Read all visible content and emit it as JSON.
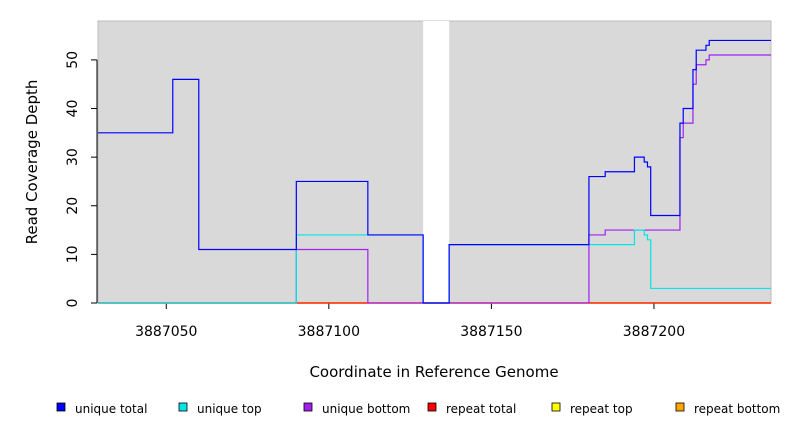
{
  "chart_data": {
    "type": "line",
    "title": "",
    "xlabel": "Coordinate in Reference Genome",
    "ylabel": "Read Coverage Depth",
    "xlim": [
      3887029,
      3887236
    ],
    "ylim": [
      0,
      58
    ],
    "x_ticks": [
      3887050,
      3887100,
      3887150,
      3887200
    ],
    "x_tick_labels": [
      "3887050",
      "3887100",
      "3887150",
      "3887200"
    ],
    "y_ticks": [
      0,
      10,
      20,
      30,
      40,
      50
    ],
    "y_tick_labels": [
      "0",
      "10",
      "20",
      "30",
      "40",
      "50"
    ],
    "gap": [
      3887129,
      3887137
    ],
    "legend_position": "bottom",
    "colors": {
      "panel_bg": "#d9d9d9",
      "gap_bg": "#ffffff",
      "unique_total": "#0000ff",
      "unique_top": "#00e5e5",
      "unique_bottom": "#a020f0",
      "repeat_total": "#ff0000",
      "repeat_top": "#ffff00",
      "repeat_bottom": "#ffa500"
    },
    "series": [
      {
        "name": "unique total",
        "color": "#0000ff",
        "steps": [
          [
            3887029,
            35
          ],
          [
            3887052,
            46
          ],
          [
            3887060,
            11
          ],
          [
            3887090,
            25
          ],
          [
            3887112,
            14
          ],
          [
            3887129,
            0
          ],
          [
            3887137,
            12
          ],
          [
            3887180,
            26
          ],
          [
            3887185,
            27
          ],
          [
            3887194,
            30
          ],
          [
            3887197,
            29
          ],
          [
            3887198,
            28
          ],
          [
            3887199,
            18
          ],
          [
            3887208,
            37
          ],
          [
            3887209,
            40
          ],
          [
            3887212,
            48
          ],
          [
            3887213,
            52
          ],
          [
            3887216,
            53
          ],
          [
            3887217,
            54
          ],
          [
            3887236,
            54
          ]
        ]
      },
      {
        "name": "unique top",
        "color": "#00e5e5",
        "steps": [
          [
            3887029,
            0
          ],
          [
            3887090,
            14
          ],
          [
            3887129,
            0
          ],
          [
            3887137,
            12
          ],
          [
            3887194,
            15
          ],
          [
            3887197,
            14
          ],
          [
            3887198,
            13
          ],
          [
            3887199,
            3
          ],
          [
            3887236,
            3
          ]
        ]
      },
      {
        "name": "unique bottom",
        "color": "#a020f0",
        "steps": [
          [
            3887029,
            0
          ],
          [
            3887090,
            11
          ],
          [
            3887112,
            0
          ],
          [
            3887180,
            14
          ],
          [
            3887185,
            15
          ],
          [
            3887208,
            34
          ],
          [
            3887209,
            37
          ],
          [
            3887212,
            45
          ],
          [
            3887213,
            49
          ],
          [
            3887216,
            50
          ],
          [
            3887217,
            51
          ],
          [
            3887236,
            51
          ]
        ]
      },
      {
        "name": "repeat total",
        "color": "#ff0000",
        "steps": [
          [
            3887029,
            0
          ],
          [
            3887236,
            0
          ]
        ]
      },
      {
        "name": "repeat top",
        "color": "#ffff00",
        "steps": [
          [
            3887029,
            0
          ],
          [
            3887236,
            0
          ]
        ]
      },
      {
        "name": "repeat bottom",
        "color": "#ffa500",
        "steps": [
          [
            3887029,
            0
          ],
          [
            3887236,
            0
          ]
        ]
      }
    ]
  },
  "legend": [
    {
      "label": "unique total",
      "color": "#0000ff"
    },
    {
      "label": "unique top",
      "color": "#00e5e5"
    },
    {
      "label": "unique bottom",
      "color": "#a020f0"
    },
    {
      "label": "repeat total",
      "color": "#ff0000"
    },
    {
      "label": "repeat top",
      "color": "#ffff00"
    },
    {
      "label": "repeat bottom",
      "color": "#ffa500"
    }
  ]
}
